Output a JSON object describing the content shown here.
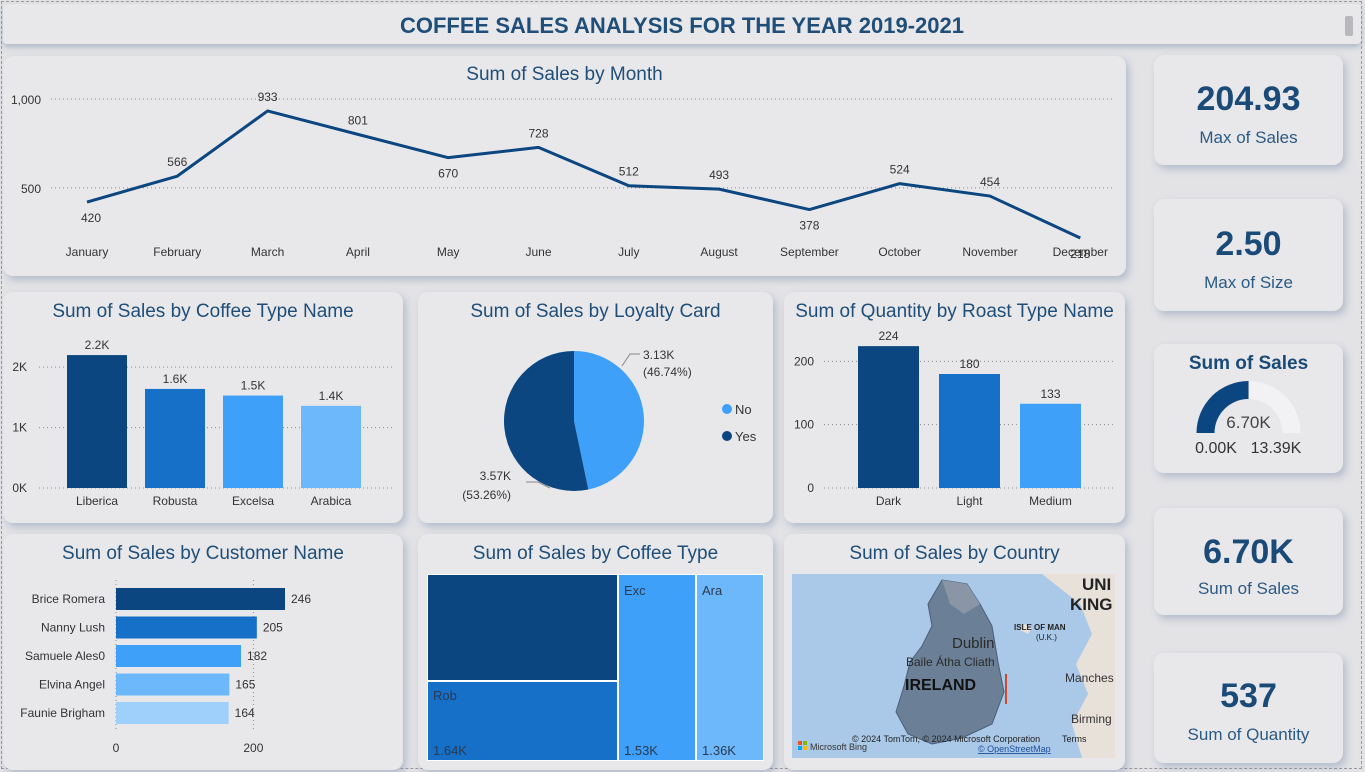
{
  "header": {
    "title": "COFFEE SALES ANALYSIS FOR THE YEAR 2019-2021"
  },
  "colors": {
    "dark": "#0c4680",
    "mid": "#1670c8",
    "light": "#3ea0f8",
    "lighter": "#6cb8fa",
    "lightest": "#9fd0fb",
    "title": "#1f4e79"
  },
  "month_chart": {
    "title": "Sum of Sales by Month",
    "chart_data": {
      "type": "line",
      "categories": [
        "January",
        "February",
        "March",
        "April",
        "May",
        "June",
        "July",
        "August",
        "September",
        "October",
        "November",
        "December"
      ],
      "values": [
        420,
        566,
        933,
        801,
        670,
        728,
        512,
        493,
        378,
        524,
        454,
        218
      ],
      "data_labels": [
        "420",
        "566",
        "933",
        "801",
        "670",
        "728",
        "512",
        "493",
        "378",
        "524",
        "454",
        "218"
      ],
      "ylim": [
        218,
        1000
      ],
      "yticks": [
        500,
        1000
      ],
      "ytick_labels": [
        "500",
        "1,000"
      ],
      "grid": true
    }
  },
  "coffee_type_chart": {
    "title": "Sum of Sales by Coffee Type Name",
    "chart_data": {
      "type": "bar",
      "categories": [
        "Liberica",
        "Robusta",
        "Excelsa",
        "Arabica"
      ],
      "values": [
        2200,
        1640,
        1530,
        1360
      ],
      "data_labels": [
        "2.2K",
        "1.6K",
        "1.5K",
        "1.4K"
      ],
      "ylim": [
        0,
        2400
      ],
      "yticks": [
        0,
        1000,
        2000
      ],
      "ytick_labels": [
        "0K",
        "1K",
        "2K"
      ]
    }
  },
  "loyalty_chart": {
    "title": "Sum of Sales by Loyalty Card",
    "chart_data": {
      "type": "pie",
      "slices": [
        {
          "name": "No",
          "value": 3.13,
          "label": "3.13K",
          "pct": "(46.74%)"
        },
        {
          "name": "Yes",
          "value": 3.57,
          "label": "3.57K",
          "pct": "(53.26%)"
        }
      ],
      "legend": [
        "No",
        "Yes"
      ],
      "legend_position": "right"
    }
  },
  "roast_chart": {
    "title": "Sum of Quantity by Roast Type Name",
    "chart_data": {
      "type": "bar",
      "categories": [
        "Dark",
        "Light",
        "Medium"
      ],
      "values": [
        224,
        180,
        133
      ],
      "data_labels": [
        "224",
        "180",
        "133"
      ],
      "ylim": [
        0,
        240
      ],
      "yticks": [
        0,
        100,
        200
      ],
      "ytick_labels": [
        "0",
        "100",
        "200"
      ]
    }
  },
  "customer_chart": {
    "title": "Sum of Sales by Customer Name",
    "chart_data": {
      "type": "bar",
      "orientation": "horizontal",
      "categories": [
        "Brice Romera",
        "Nanny Lush",
        "Samuele Ales0",
        "Elvina Angel",
        "Faunie Brigham"
      ],
      "values": [
        246,
        205,
        182,
        165,
        164
      ],
      "data_labels": [
        "246",
        "205",
        "182",
        "165",
        "164"
      ],
      "xlim": [
        0,
        246
      ],
      "xticks": [
        0,
        200
      ],
      "xtick_labels": [
        "0",
        "200"
      ]
    }
  },
  "treemap": {
    "title": "Sum of Sales by Coffee Type",
    "tiles": [
      {
        "name": "",
        "value": ""
      },
      {
        "name": "Rob",
        "value": "1.64K"
      },
      {
        "name": "Exc",
        "value": "1.53K"
      },
      {
        "name": "Ara",
        "value": "1.36K"
      }
    ]
  },
  "country_map": {
    "title": "Sum of Sales by Country",
    "labels": {
      "uk1": "UNI",
      "uk2": "KING",
      "isle": "ISLE OF MAN",
      "isle2": "(U.K.)",
      "dublin": "Dublin",
      "baile": "Baile Átha Cliath",
      "ireland": "IRELAND",
      "manchester": "Manches",
      "birmingham": "Birming"
    },
    "attribution": "© 2024 TomTom, © 2024 Microsoft Corporation",
    "terms": "Terms",
    "osm": "© OpenStreetMap",
    "bing": "Microsoft Bing"
  },
  "kpis": [
    {
      "value": "204.93",
      "label": "Max of Sales"
    },
    {
      "value": "2.50",
      "label": "Max of Size"
    },
    {
      "value": "6.70K",
      "label": "Sum of Sales"
    },
    {
      "value": "537",
      "label": "Sum of Quantity"
    }
  ],
  "gauge": {
    "title": "Sum of Sales",
    "value_label": "6.70K",
    "min_label": "0.00K",
    "max_label": "13.39K",
    "value": 6.7,
    "min": 0.0,
    "max": 13.39
  }
}
